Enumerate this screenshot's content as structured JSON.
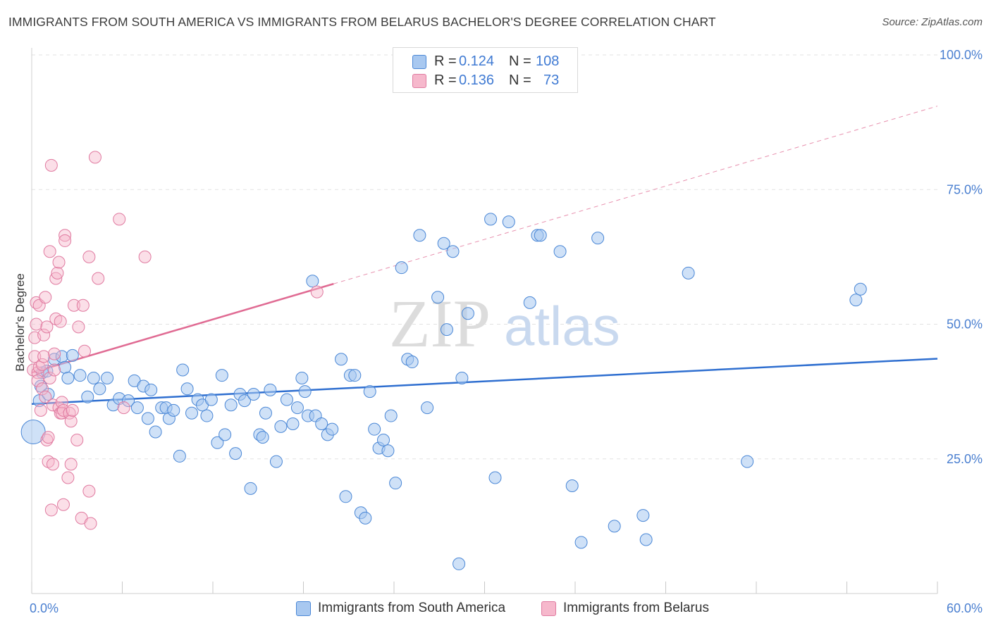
{
  "header": {
    "title": "IMMIGRANTS FROM SOUTH AMERICA VS IMMIGRANTS FROM BELARUS BACHELOR'S DEGREE CORRELATION CHART",
    "source": "Source: ZipAtlas.com"
  },
  "legend": {
    "r_label": "R =",
    "n_label": "N =",
    "rows": [
      {
        "r": "0.124",
        "n": "108"
      },
      {
        "r": "0.136",
        "n": "73"
      }
    ]
  },
  "watermark": {
    "zip": "ZIP",
    "atlas": "atlas"
  },
  "colors": {
    "blue_fill": "#a8c8f0",
    "blue_stroke": "#4a87d6",
    "blue_line": "#2f6fd0",
    "pink_fill": "#f6b8cc",
    "pink_stroke": "#e07aa0",
    "pink_line": "#e06b93",
    "axis_label": "#4a7fd0"
  },
  "chart_data": {
    "type": "scatter",
    "title": "IMMIGRANTS FROM SOUTH AMERICA VS IMMIGRANTS FROM BELARUS BACHELOR'S DEGREE CORRELATION CHART",
    "xlabel": "",
    "ylabel": "Bachelor's Degree",
    "xlim": [
      0,
      60
    ],
    "ylim": [
      0,
      100
    ],
    "x_tick_labels": [
      "0.0%",
      "60.0%"
    ],
    "y_tick_labels": [
      "25.0%",
      "50.0%",
      "75.0%",
      "100.0%"
    ],
    "y_ticks": [
      25,
      50,
      75,
      100
    ],
    "grid": "horizontal dashed",
    "legend_position": "top-center",
    "series": [
      {
        "name": "Immigrants from South America",
        "color": "#a8c8f0",
        "r": 0.124,
        "n": 108,
        "trend": {
          "x": [
            0,
            60
          ],
          "y": [
            35.2,
            43.6
          ],
          "style": "solid"
        },
        "points": [
          [
            0.1,
            30.0
          ],
          [
            0.5,
            35.8
          ],
          [
            0.6,
            38.5
          ],
          [
            0.7,
            41.0
          ],
          [
            1.0,
            41.3
          ],
          [
            1.1,
            37.0
          ],
          [
            1.5,
            43.5
          ],
          [
            2.0,
            44.0
          ],
          [
            2.2,
            42.0
          ],
          [
            2.4,
            40.0
          ],
          [
            2.7,
            44.2
          ],
          [
            3.2,
            40.5
          ],
          [
            3.7,
            36.5
          ],
          [
            4.1,
            40.0
          ],
          [
            4.5,
            38.0
          ],
          [
            5.0,
            40.0
          ],
          [
            5.4,
            35.0
          ],
          [
            5.8,
            36.2
          ],
          [
            6.4,
            35.8
          ],
          [
            6.8,
            39.5
          ],
          [
            7.0,
            34.5
          ],
          [
            7.4,
            38.5
          ],
          [
            7.7,
            32.5
          ],
          [
            7.9,
            37.8
          ],
          [
            8.2,
            30.0
          ],
          [
            8.6,
            34.5
          ],
          [
            8.9,
            34.5
          ],
          [
            9.1,
            32.5
          ],
          [
            9.4,
            34.0
          ],
          [
            9.8,
            25.5
          ],
          [
            10.0,
            41.5
          ],
          [
            10.3,
            38.0
          ],
          [
            10.6,
            33.5
          ],
          [
            11.0,
            36.0
          ],
          [
            11.3,
            35.0
          ],
          [
            11.6,
            33.0
          ],
          [
            11.9,
            36.0
          ],
          [
            12.3,
            28.0
          ],
          [
            12.6,
            40.5
          ],
          [
            12.8,
            29.5
          ],
          [
            13.2,
            35.0
          ],
          [
            13.5,
            26.0
          ],
          [
            13.8,
            37.0
          ],
          [
            14.1,
            35.8
          ],
          [
            14.5,
            19.5
          ],
          [
            14.7,
            37.0
          ],
          [
            15.1,
            29.5
          ],
          [
            15.3,
            29.0
          ],
          [
            15.5,
            33.5
          ],
          [
            15.8,
            37.8
          ],
          [
            16.2,
            24.5
          ],
          [
            16.5,
            31.0
          ],
          [
            16.9,
            36.0
          ],
          [
            17.3,
            31.5
          ],
          [
            17.6,
            34.5
          ],
          [
            17.9,
            40.0
          ],
          [
            18.1,
            37.5
          ],
          [
            18.3,
            33.0
          ],
          [
            18.6,
            58.0
          ],
          [
            18.8,
            33.0
          ],
          [
            19.2,
            31.5
          ],
          [
            19.6,
            29.5
          ],
          [
            19.9,
            30.5
          ],
          [
            20.5,
            43.5
          ],
          [
            20.8,
            18.0
          ],
          [
            21.1,
            40.5
          ],
          [
            21.4,
            40.5
          ],
          [
            21.8,
            15.0
          ],
          [
            22.1,
            14.0
          ],
          [
            22.4,
            37.5
          ],
          [
            22.7,
            30.5
          ],
          [
            23.0,
            27.0
          ],
          [
            23.3,
            28.5
          ],
          [
            23.6,
            26.5
          ],
          [
            23.8,
            33.0
          ],
          [
            24.1,
            20.5
          ],
          [
            24.5,
            60.5
          ],
          [
            24.9,
            43.5
          ],
          [
            25.2,
            43.0
          ],
          [
            25.7,
            66.5
          ],
          [
            26.2,
            34.5
          ],
          [
            26.9,
            55.0
          ],
          [
            27.3,
            65.0
          ],
          [
            27.5,
            49.0
          ],
          [
            27.9,
            63.5
          ],
          [
            28.3,
            5.5
          ],
          [
            28.5,
            40.0
          ],
          [
            28.9,
            52.0
          ],
          [
            30.4,
            69.5
          ],
          [
            30.7,
            21.5
          ],
          [
            31.6,
            69.0
          ],
          [
            33.0,
            54.0
          ],
          [
            33.5,
            66.5
          ],
          [
            33.7,
            66.5
          ],
          [
            35.0,
            63.5
          ],
          [
            35.8,
            20.0
          ],
          [
            36.4,
            9.5
          ],
          [
            37.5,
            66.0
          ],
          [
            38.6,
            12.5
          ],
          [
            40.5,
            14.5
          ],
          [
            40.7,
            10.0
          ],
          [
            43.5,
            59.5
          ],
          [
            47.4,
            24.5
          ],
          [
            54.6,
            54.5
          ],
          [
            54.9,
            56.5
          ]
        ]
      },
      {
        "name": "Immigrants from Belarus",
        "color": "#f6b8cc",
        "r": 0.136,
        "n": 73,
        "trend": {
          "x": [
            0,
            20
          ],
          "y": [
            41.0,
            57.5
          ],
          "style": "solid",
          "extension": {
            "x": [
              20,
              60
            ],
            "y": [
              57.5,
              90.5
            ],
            "style": "dashed"
          }
        },
        "points": [
          [
            0.1,
            41.5
          ],
          [
            0.2,
            47.5
          ],
          [
            0.2,
            44.0
          ],
          [
            0.3,
            50.0
          ],
          [
            0.3,
            54.0
          ],
          [
            0.4,
            41.0
          ],
          [
            0.4,
            39.5
          ],
          [
            0.5,
            53.5
          ],
          [
            0.5,
            42.0
          ],
          [
            0.6,
            34.0
          ],
          [
            0.7,
            38.0
          ],
          [
            0.7,
            42.5
          ],
          [
            0.8,
            44.0
          ],
          [
            0.8,
            48.0
          ],
          [
            0.9,
            36.5
          ],
          [
            0.9,
            55.0
          ],
          [
            1.0,
            28.5
          ],
          [
            1.0,
            49.5
          ],
          [
            1.1,
            24.5
          ],
          [
            1.1,
            29.0
          ],
          [
            1.2,
            40.0
          ],
          [
            1.2,
            63.5
          ],
          [
            1.3,
            79.5
          ],
          [
            1.3,
            15.5
          ],
          [
            1.4,
            35.0
          ],
          [
            1.4,
            24.0
          ],
          [
            1.5,
            44.5
          ],
          [
            1.5,
            41.5
          ],
          [
            1.6,
            51.0
          ],
          [
            1.6,
            58.5
          ],
          [
            1.7,
            59.5
          ],
          [
            1.8,
            61.5
          ],
          [
            1.8,
            34.5
          ],
          [
            1.9,
            33.5
          ],
          [
            1.9,
            50.5
          ],
          [
            2.0,
            35.5
          ],
          [
            2.0,
            33.5
          ],
          [
            2.1,
            16.5
          ],
          [
            2.1,
            34.0
          ],
          [
            2.2,
            66.5
          ],
          [
            2.2,
            65.5
          ],
          [
            2.4,
            21.5
          ],
          [
            2.5,
            33.5
          ],
          [
            2.6,
            24.0
          ],
          [
            2.6,
            32.0
          ],
          [
            2.7,
            34.0
          ],
          [
            2.8,
            53.5
          ],
          [
            3.0,
            28.5
          ],
          [
            3.1,
            49.5
          ],
          [
            3.3,
            14.0
          ],
          [
            3.4,
            53.5
          ],
          [
            3.5,
            45.0
          ],
          [
            3.8,
            62.5
          ],
          [
            3.8,
            19.0
          ],
          [
            3.9,
            13.0
          ],
          [
            4.2,
            81.0
          ],
          [
            4.4,
            58.5
          ],
          [
            5.8,
            69.5
          ],
          [
            6.1,
            34.5
          ],
          [
            7.5,
            62.5
          ],
          [
            18.9,
            56.0
          ]
        ]
      }
    ]
  },
  "bottom_legend": {
    "items": [
      {
        "label": "Immigrants from South America"
      },
      {
        "label": "Immigrants from Belarus"
      }
    ]
  }
}
